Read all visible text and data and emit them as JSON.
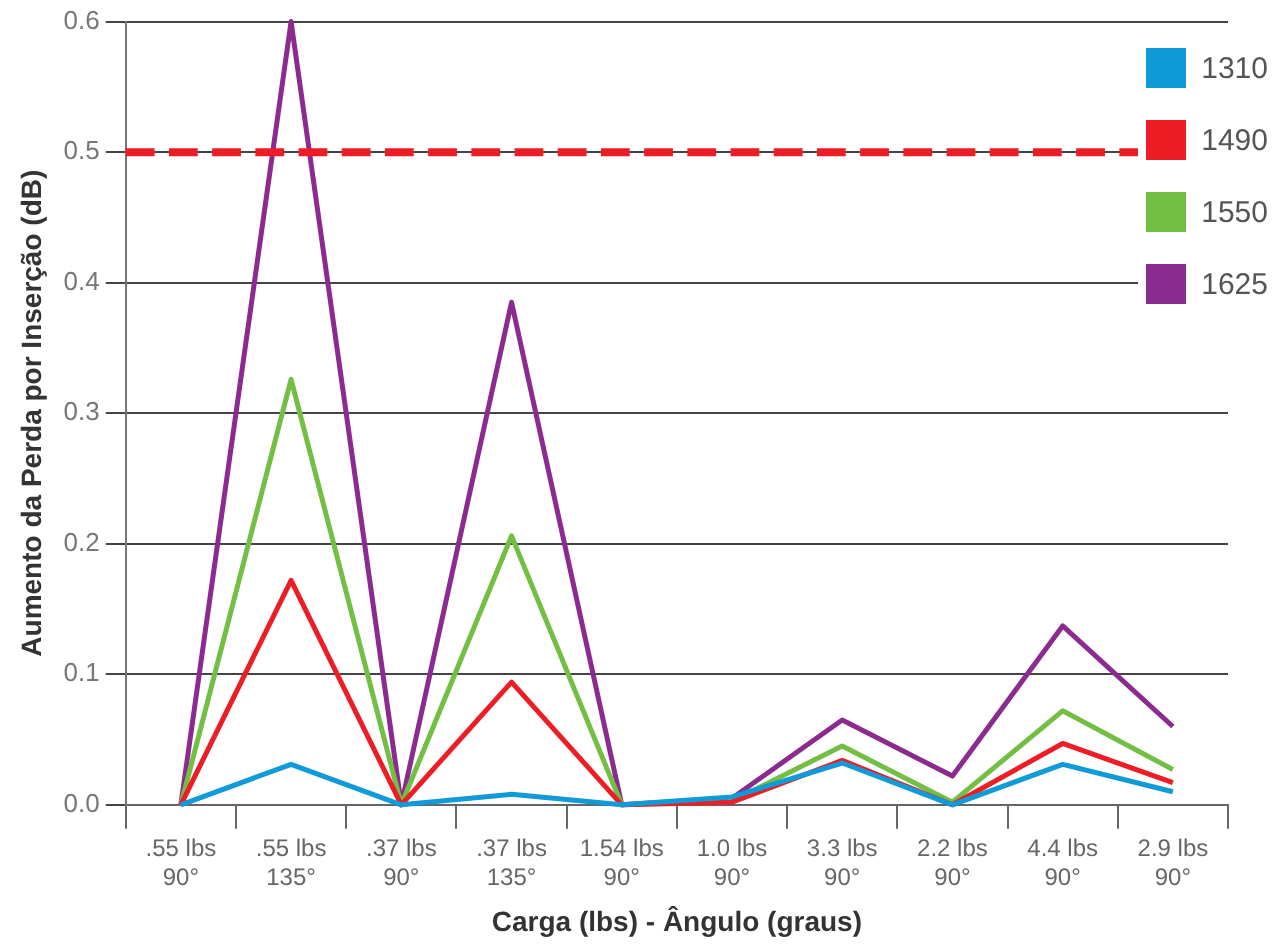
{
  "chart_data": {
    "type": "line",
    "xlabel": "Carga (lbs) - Ângulo (graus)",
    "ylabel": "Aumento da Perda por Inserção (dB)",
    "categories": [
      ".55 lbs\n90°",
      ".55 lbs\n135°",
      ".37 lbs\n90°",
      ".37 lbs\n135°",
      "1.54 lbs\n90°",
      "1.0 lbs\n90°",
      "3.3 lbs\n90°",
      "2.2 lbs\n90°",
      "4.4 lbs\n90°",
      "2.9 lbs\n90°"
    ],
    "series": [
      {
        "name": "1310",
        "color": "#0f9ad8",
        "values": [
          0,
          0.031,
          0,
          0.008,
          0,
          0.006,
          0.032,
          0,
          0.031,
          0.01
        ]
      },
      {
        "name": "1490",
        "color": "#ee1c25",
        "values": [
          0,
          0.172,
          0,
          0.094,
          0,
          0.002,
          0.034,
          0,
          0.047,
          0.017
        ]
      },
      {
        "name": "1550",
        "color": "#72bf44",
        "values": [
          0,
          0.326,
          0,
          0.206,
          0,
          0.003,
          0.045,
          0.002,
          0.072,
          0.027
        ]
      },
      {
        "name": "1625",
        "color": "#8b2a8f",
        "values": [
          0,
          0.6,
          0,
          0.385,
          0,
          0.005,
          0.065,
          0.022,
          0.137,
          0.06
        ]
      }
    ],
    "ylim": [
      0,
      0.6
    ],
    "yticks": [
      {
        "value": 0,
        "label": "0.0"
      },
      0.1,
      0.2,
      0.3,
      0.4,
      0.5,
      0.6
    ],
    "grid": "y",
    "legend": "top right",
    "marker": "none",
    "line_style": "solid",
    "ref_lines": [
      {
        "axis": "y",
        "value": 0.5,
        "color": "#ee1c25",
        "line_style": "dashed"
      }
    ]
  }
}
